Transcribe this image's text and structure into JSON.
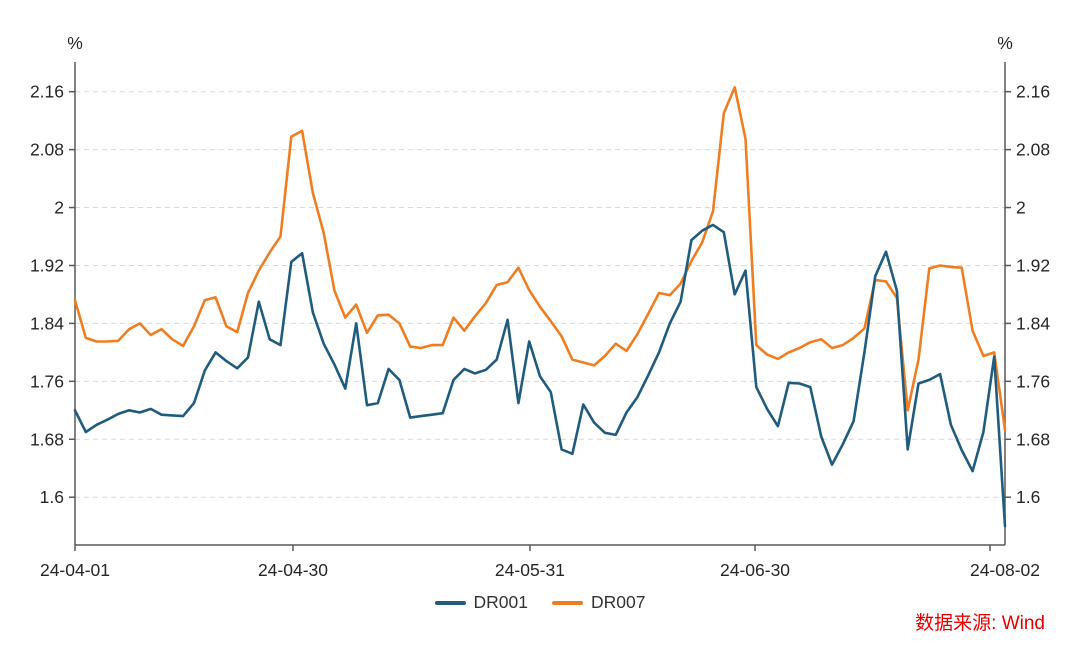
{
  "page": {
    "source_note": "数据来源: Wind",
    "source_color": "#e60000"
  },
  "chart_data": {
    "type": "line",
    "title": "",
    "unit_left": "%",
    "unit_right": "%",
    "xlabel": "",
    "ylabel": "%",
    "grid": "horizontal-dashed",
    "legend_position": "bottom-center",
    "axis_color": "#595959",
    "grid_color": "#d9d9d9",
    "label_color": "#262626",
    "x_tick_labels": [
      "24-04-01",
      "24-04-30",
      "24-05-31",
      "24-06-30",
      "24-08-02"
    ],
    "x_tick_positions": [
      0,
      0.2344,
      0.4892,
      0.7312,
      0.9839
    ],
    "y_ticks": [
      1.6,
      1.68,
      1.76,
      1.84,
      1.92,
      2,
      2.08,
      2.16
    ],
    "ylim": [
      1.534,
      2.201
    ],
    "series": [
      {
        "name": "DR001",
        "color": "#1f5c7d",
        "values": [
          1.72,
          1.69,
          1.7,
          1.707,
          1.715,
          1.72,
          1.717,
          1.722,
          1.714,
          1.713,
          1.712,
          1.73,
          1.775,
          1.8,
          1.788,
          1.778,
          1.793,
          1.87,
          1.818,
          1.81,
          1.925,
          1.937,
          1.855,
          1.812,
          1.783,
          1.75,
          1.84,
          1.727,
          1.73,
          1.777,
          1.762,
          1.71,
          1.712,
          1.714,
          1.716,
          1.762,
          1.777,
          1.771,
          1.776,
          1.79,
          1.845,
          1.73,
          1.815,
          1.767,
          1.745,
          1.666,
          1.66,
          1.728,
          1.703,
          1.689,
          1.686,
          1.717,
          1.738,
          1.768,
          1.8,
          1.84,
          1.87,
          1.955,
          1.968,
          1.976,
          1.966,
          1.88,
          1.913,
          1.752,
          1.722,
          1.698,
          1.758,
          1.757,
          1.752,
          1.684,
          1.645,
          1.673,
          1.705,
          1.8,
          1.905,
          1.939,
          1.885,
          1.666,
          1.757,
          1.762,
          1.77,
          1.7,
          1.665,
          1.636,
          1.69,
          1.794,
          1.56
        ]
      },
      {
        "name": "DR007",
        "color": "#ef7e23",
        "values": [
          1.872,
          1.82,
          1.815,
          1.815,
          1.816,
          1.832,
          1.84,
          1.824,
          1.832,
          1.818,
          1.809,
          1.836,
          1.872,
          1.876,
          1.836,
          1.828,
          1.882,
          1.913,
          1.938,
          1.96,
          2.098,
          2.106,
          2.02,
          1.965,
          1.885,
          1.848,
          1.866,
          1.827,
          1.851,
          1.852,
          1.84,
          1.808,
          1.806,
          1.81,
          1.81,
          1.848,
          1.83,
          1.85,
          1.868,
          1.893,
          1.897,
          1.917,
          1.886,
          1.863,
          1.843,
          1.822,
          1.79,
          1.786,
          1.782,
          1.795,
          1.812,
          1.802,
          1.825,
          1.853,
          1.882,
          1.879,
          1.895,
          1.926,
          1.952,
          1.995,
          2.13,
          2.166,
          2.095,
          1.81,
          1.797,
          1.791,
          1.8,
          1.806,
          1.814,
          1.818,
          1.806,
          1.81,
          1.82,
          1.833,
          1.9,
          1.898,
          1.875,
          1.72,
          1.79,
          1.916,
          1.92,
          1.918,
          1.917,
          1.83,
          1.795,
          1.8,
          1.693
        ]
      }
    ]
  }
}
